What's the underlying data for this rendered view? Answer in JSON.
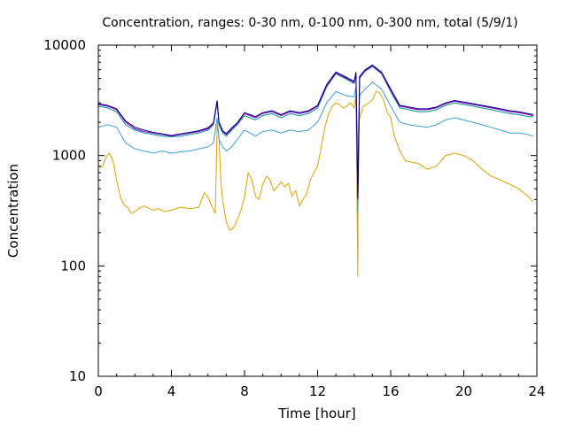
{
  "chart_data": {
    "type": "line",
    "title": "Concentration, ranges: 0-30 nm, 0-100 nm, 0-300 nm, total (5/9/1)",
    "xlabel": "Time [hour]",
    "ylabel": "Concentration",
    "xlim": [
      0,
      24
    ],
    "ylim": [
      10,
      10000
    ],
    "yscale": "log",
    "xticks": [
      0,
      4,
      8,
      12,
      16,
      20,
      24
    ],
    "yticks": [
      10,
      100,
      1000,
      10000
    ],
    "grid": false,
    "series": [
      {
        "color": "#e0a000",
        "x": [
          0,
          0.2,
          0.4,
          0.6,
          0.8,
          1.0,
          1.2,
          1.4,
          1.6,
          1.8,
          2.0,
          2.2,
          2.5,
          3.0,
          3.3,
          3.6,
          4.0,
          4.5,
          5.0,
          5.5,
          5.8,
          6.0,
          6.2,
          6.4,
          6.5,
          6.6,
          6.7,
          6.8,
          7.0,
          7.2,
          7.4,
          7.6,
          7.8,
          8.0,
          8.2,
          8.4,
          8.6,
          8.8,
          9.0,
          9.2,
          9.4,
          9.6,
          9.8,
          10.0,
          10.2,
          10.4,
          10.6,
          10.8,
          11.0,
          11.2,
          11.4,
          11.6,
          11.8,
          12.0,
          12.2,
          12.4,
          12.6,
          12.8,
          13.0,
          13.2,
          13.4,
          13.6,
          13.8,
          14.0,
          14.1,
          14.2,
          14.22,
          14.25,
          14.3,
          14.5,
          14.8,
          15.0,
          15.2,
          15.4,
          15.6,
          15.8,
          16.0,
          16.2,
          16.5,
          16.8,
          17.0,
          17.5,
          18.0,
          18.5,
          19.0,
          19.5,
          20.0,
          20.5,
          21.0,
          21.5,
          22.0,
          22.5,
          23.0,
          23.5,
          23.8
        ],
        "y": [
          800,
          780,
          950,
          1050,
          900,
          600,
          420,
          360,
          340,
          300,
          310,
          330,
          350,
          320,
          330,
          310,
          320,
          340,
          330,
          340,
          460,
          420,
          350,
          300,
          1900,
          1500,
          600,
          400,
          250,
          210,
          220,
          260,
          320,
          420,
          700,
          600,
          430,
          400,
          550,
          650,
          600,
          480,
          520,
          580,
          520,
          560,
          430,
          480,
          350,
          400,
          450,
          600,
          700,
          800,
          1200,
          1800,
          2400,
          2800,
          3000,
          2900,
          2700,
          2800,
          3000,
          2700,
          3500,
          80,
          1500,
          2000,
          2200,
          2800,
          3000,
          3200,
          3800,
          3700,
          3200,
          2500,
          2200,
          1500,
          1100,
          900,
          880,
          850,
          750,
          800,
          1000,
          1050,
          1000,
          900,
          750,
          650,
          600,
          550,
          500,
          430,
          380
        ]
      },
      {
        "color": "#3aa0dc",
        "x": [
          0,
          0.5,
          1.0,
          1.5,
          2.0,
          2.5,
          3.0,
          3.5,
          4.0,
          4.5,
          5.0,
          5.5,
          6.0,
          6.3,
          6.5,
          6.6,
          6.8,
          7.0,
          7.3,
          7.6,
          8.0,
          8.3,
          8.6,
          9.0,
          9.5,
          10.0,
          10.5,
          11.0,
          11.5,
          12.0,
          12.5,
          13.0,
          13.5,
          14.0,
          14.1,
          14.2,
          14.3,
          14.6,
          15.0,
          15.5,
          16.0,
          16.5,
          17.0,
          17.5,
          18.0,
          18.5,
          19.0,
          19.5,
          20.0,
          20.5,
          21.0,
          21.5,
          22.0,
          22.5,
          23.0,
          23.5,
          23.8
        ],
        "y": [
          1800,
          1900,
          1800,
          1300,
          1150,
          1100,
          1050,
          1100,
          1050,
          1080,
          1100,
          1150,
          1200,
          1300,
          2200,
          1400,
          1200,
          1100,
          1200,
          1400,
          1700,
          1600,
          1500,
          1650,
          1700,
          1600,
          1700,
          1650,
          1700,
          2000,
          3000,
          3800,
          3500,
          3400,
          4200,
          300,
          3500,
          4000,
          4600,
          4000,
          2800,
          2000,
          1900,
          1850,
          1800,
          1900,
          2100,
          2200,
          2100,
          2000,
          1900,
          1800,
          1700,
          1600,
          1600,
          1550,
          1500
        ]
      },
      {
        "color": "#009090",
        "x": [
          0,
          0.5,
          1.0,
          1.5,
          2.0,
          2.5,
          3.0,
          3.5,
          4.0,
          4.5,
          5.0,
          5.5,
          6.0,
          6.3,
          6.5,
          6.6,
          6.8,
          7.0,
          7.3,
          7.6,
          8.0,
          8.3,
          8.6,
          9.0,
          9.5,
          10.0,
          10.5,
          11.0,
          11.5,
          12.0,
          12.5,
          13.0,
          13.5,
          14.0,
          14.1,
          14.2,
          14.3,
          14.6,
          15.0,
          15.5,
          16.0,
          16.5,
          17.0,
          17.5,
          18.0,
          18.5,
          19.0,
          19.5,
          20.0,
          20.5,
          21.0,
          21.5,
          22.0,
          22.5,
          23.0,
          23.5,
          23.8
        ],
        "y": [
          2800,
          2700,
          2500,
          1900,
          1700,
          1600,
          1550,
          1500,
          1480,
          1500,
          1550,
          1600,
          1700,
          1900,
          3000,
          1900,
          1600,
          1500,
          1700,
          1900,
          2300,
          2200,
          2100,
          2300,
          2400,
          2200,
          2400,
          2300,
          2400,
          2700,
          4200,
          5500,
          5000,
          4500,
          5500,
          400,
          5000,
          5800,
          6400,
          5500,
          3800,
          2700,
          2600,
          2500,
          2500,
          2600,
          2850,
          3000,
          2900,
          2800,
          2700,
          2600,
          2500,
          2400,
          2350,
          2250,
          2250
        ]
      },
      {
        "color": "#9400d3",
        "x": [
          0,
          0.5,
          1.0,
          1.5,
          2.0,
          2.5,
          3.0,
          3.5,
          4.0,
          4.5,
          5.0,
          5.5,
          6.0,
          6.3,
          6.5,
          6.6,
          6.8,
          7.0,
          7.3,
          7.6,
          8.0,
          8.3,
          8.6,
          9.0,
          9.5,
          10.0,
          10.5,
          11.0,
          11.5,
          12.0,
          12.5,
          13.0,
          13.5,
          14.0,
          14.1,
          14.2,
          14.3,
          14.6,
          15.0,
          15.5,
          16.0,
          16.5,
          17.0,
          17.5,
          18.0,
          18.5,
          19.0,
          19.5,
          20.0,
          20.5,
          21.0,
          21.5,
          22.0,
          22.5,
          23.0,
          23.5,
          23.8
        ],
        "y": [
          2900,
          2800,
          2600,
          2000,
          1750,
          1650,
          1600,
          1550,
          1500,
          1550,
          1600,
          1650,
          1750,
          1950,
          3100,
          2000,
          1650,
          1550,
          1750,
          1950,
          2400,
          2300,
          2200,
          2400,
          2500,
          2300,
          2500,
          2400,
          2500,
          2800,
          4300,
          5600,
          5100,
          4600,
          5600,
          400,
          5100,
          5900,
          6500,
          5600,
          3900,
          2800,
          2700,
          2600,
          2600,
          2700,
          2950,
          3100,
          3000,
          2900,
          2800,
          2700,
          2600,
          2500,
          2450,
          2350,
          2300
        ]
      },
      {
        "color": "#000080",
        "x": [
          0,
          0.5,
          1.0,
          1.5,
          2.0,
          2.5,
          3.0,
          3.5,
          4.0,
          4.5,
          5.0,
          5.5,
          6.0,
          6.3,
          6.5,
          6.6,
          6.8,
          7.0,
          7.3,
          7.6,
          8.0,
          8.3,
          8.6,
          9.0,
          9.5,
          10.0,
          10.5,
          11.0,
          11.5,
          12.0,
          12.5,
          13.0,
          13.5,
          14.0,
          14.1,
          14.2,
          14.3,
          14.6,
          15.0,
          15.5,
          16.0,
          16.5,
          17.0,
          17.5,
          18.0,
          18.5,
          19.0,
          19.5,
          20.0,
          20.5,
          21.0,
          21.5,
          22.0,
          22.5,
          23.0,
          23.5,
          23.8
        ],
        "y": [
          2950,
          2850,
          2650,
          2050,
          1800,
          1700,
          1620,
          1570,
          1520,
          1570,
          1620,
          1680,
          1780,
          1980,
          3150,
          2030,
          1680,
          1580,
          1780,
          1980,
          2450,
          2350,
          2250,
          2450,
          2550,
          2350,
          2550,
          2450,
          2550,
          2850,
          4400,
          5700,
          5200,
          4700,
          5700,
          410,
          5200,
          6000,
          6600,
          5700,
          4000,
          2850,
          2750,
          2650,
          2650,
          2750,
          3000,
          3150,
          3050,
          2950,
          2850,
          2750,
          2650,
          2550,
          2500,
          2400,
          2350
        ]
      }
    ]
  }
}
